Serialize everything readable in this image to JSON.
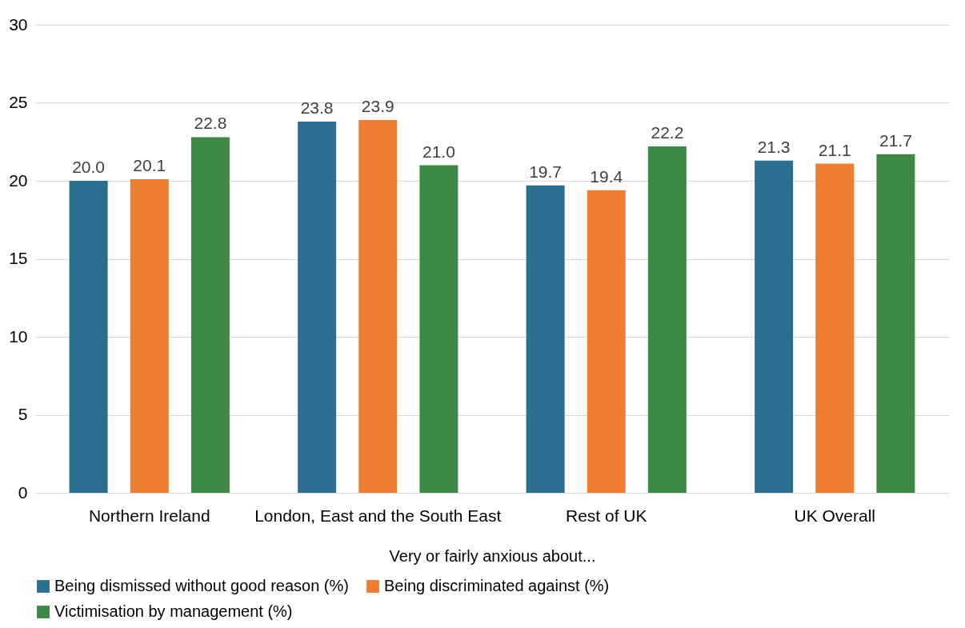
{
  "chart_data": {
    "type": "bar",
    "xlabel": "Very or fairly anxious about...",
    "categories": [
      "Northern Ireland",
      "London, East and the South East",
      "Rest of UK",
      "UK Overall"
    ],
    "series": [
      {
        "name": "Being dismissed without good reason (%)",
        "color": "#2a6f8f",
        "values": [
          20.0,
          23.8,
          19.7,
          21.3
        ],
        "value_labels": [
          "20.0",
          "23.8",
          "19.7",
          "21.3"
        ]
      },
      {
        "name": "Being discriminated against (%)",
        "color": "#ed7d31",
        "values": [
          20.1,
          23.9,
          19.4,
          21.1
        ],
        "value_labels": [
          "20.1",
          "23.9",
          "19.4",
          "21.1"
        ]
      },
      {
        "name": "Victimisation by management (%)",
        "color": "#3c8a45",
        "values": [
          22.8,
          21.0,
          22.2,
          21.7
        ],
        "value_labels": [
          "22.8",
          "21.0",
          "22.2",
          "21.7"
        ]
      }
    ],
    "ylim": [
      0,
      30
    ],
    "yticks": [
      0,
      5,
      10,
      15,
      20,
      25,
      30
    ],
    "grid": "y",
    "legend": "bottom"
  }
}
